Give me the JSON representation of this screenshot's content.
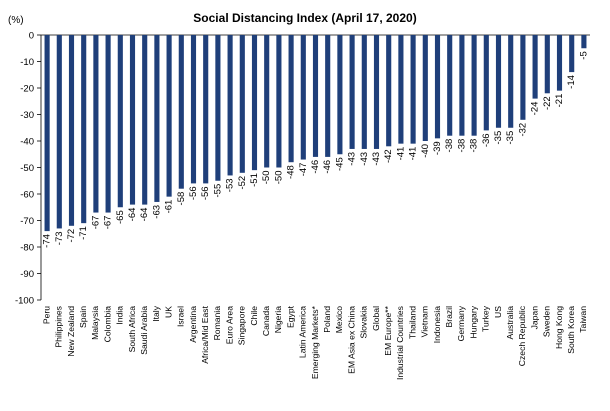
{
  "chart_data": {
    "type": "bar",
    "title": "Social Distancing Index (April 17, 2020)",
    "ylabel": "(%)",
    "xlabel": "",
    "ylim": [
      -100,
      0
    ],
    "yticks": [
      0,
      -10,
      -20,
      -30,
      -40,
      -50,
      -60,
      -70,
      -80,
      -90,
      -100
    ],
    "grid": false,
    "bar_color": "#1f3f7a",
    "categories": [
      "Peru",
      "Philippines",
      "New Zealand",
      "Spain",
      "Malaysia",
      "Colombia",
      "India",
      "South Africa",
      "Saudi Arabia",
      "Italy",
      "UK",
      "Israel",
      "Argentina",
      "Africa/Mid East",
      "Romania",
      "Euro Area",
      "Singapore",
      "Chile",
      "Canada",
      "Nigeria",
      "Egypt",
      "Latin America",
      "Emerging Markets*",
      "Poland",
      "Mexico",
      "EM Asia ex China",
      "Slovakia",
      "Global",
      "EM Europe**",
      "Industrial Countries",
      "Thailand",
      "Vietnam",
      "Indonesia",
      "Brazil",
      "Germany",
      "Hungary",
      "Turkey",
      "US",
      "Australia",
      "Czech Republic",
      "Japan",
      "Sweden",
      "Hong Kong",
      "South Korea",
      "Taiwan"
    ],
    "values": [
      -74,
      -73,
      -72,
      -71,
      -67,
      -67,
      -65,
      -64,
      -64,
      -63,
      -61,
      -58,
      -56,
      -56,
      -55,
      -53,
      -52,
      -51,
      -50,
      -50,
      -48,
      -47,
      -46,
      -46,
      -45,
      -43,
      -43,
      -43,
      -42,
      -41,
      -41,
      -40,
      -39,
      -38,
      -38,
      -38,
      -36,
      -35,
      -35,
      -32,
      -24,
      -22,
      -21,
      -14,
      -5
    ],
    "value_labels": [
      "-74",
      "-73",
      "-72",
      "-71",
      "-67",
      "-67",
      "-65",
      "-64",
      "-64",
      "-63",
      "-61",
      "-58",
      "-56",
      "-56",
      "-55",
      "-53",
      "-52",
      "-51",
      "-50",
      "-50",
      "-48",
      "-47",
      "-46",
      "-46",
      "-45",
      "-43",
      "-43",
      "-43",
      "-42",
      "-41",
      "-41",
      "-40",
      "-39",
      "-38",
      "-38",
      "-38",
      "-36",
      "-35",
      "-35",
      "-32",
      "-24",
      "-22",
      "-21",
      "-14",
      "-5"
    ]
  }
}
